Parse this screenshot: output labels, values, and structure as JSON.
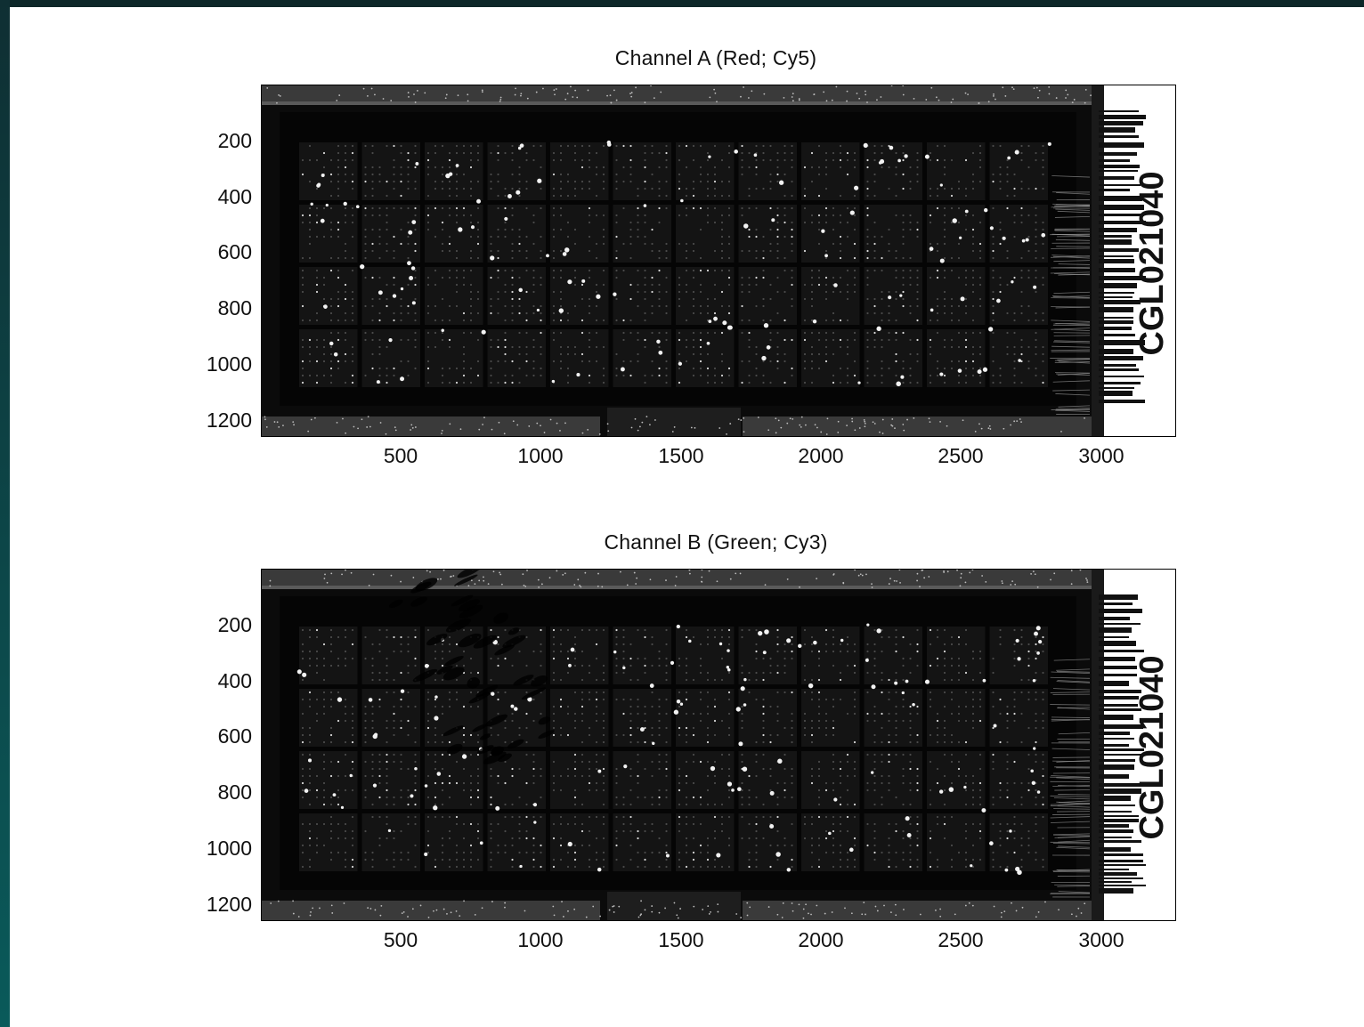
{
  "panels": [
    {
      "title": "Channel A (Red; Cy5)",
      "barcode_text": "CGL021040",
      "y_ticks": [
        "200",
        "400",
        "600",
        "800",
        "1000",
        "1200"
      ],
      "x_ticks": [
        "500",
        "1000",
        "1500",
        "2000",
        "2500",
        "3000"
      ]
    },
    {
      "title": "Channel B (Green; Cy3)",
      "barcode_text": "CGL021040",
      "y_ticks": [
        "200",
        "400",
        "600",
        "800",
        "1000",
        "1200"
      ],
      "x_ticks": [
        "500",
        "1000",
        "1500",
        "2000",
        "2500",
        "3000"
      ]
    }
  ],
  "colors": {
    "background": "#ffffff",
    "image": "#0a0a0a",
    "frame": "#0b2f33"
  }
}
